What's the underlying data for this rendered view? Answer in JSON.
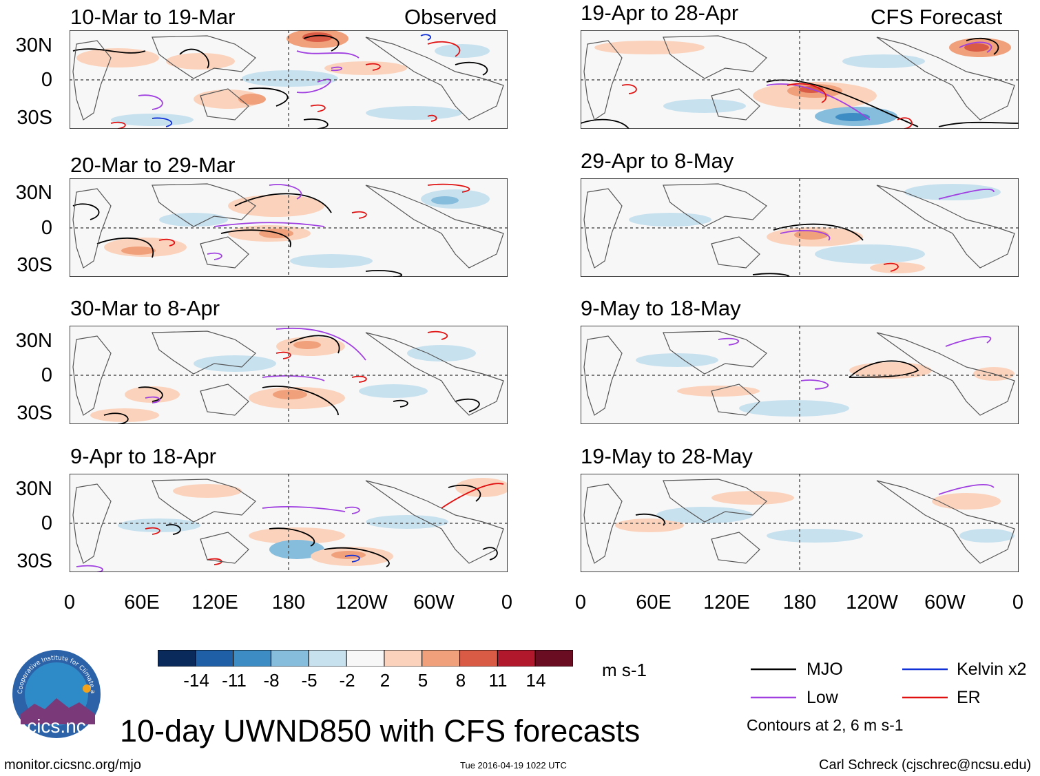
{
  "panels": [
    {
      "title": "10-Mar to 19-Mar",
      "tag": "Observed"
    },
    {
      "title": "20-Mar to 29-Mar",
      "tag": ""
    },
    {
      "title": "30-Mar to 8-Apr",
      "tag": ""
    },
    {
      "title": "9-Apr to 18-Apr",
      "tag": ""
    },
    {
      "title": "19-Apr to 28-Apr",
      "tag": "CFS Forecast"
    },
    {
      "title": "29-Apr to 8-May",
      "tag": ""
    },
    {
      "title": "9-May to 18-May",
      "tag": ""
    },
    {
      "title": "19-May to 28-May",
      "tag": ""
    }
  ],
  "lat_labels": [
    "30N",
    "0",
    "30S"
  ],
  "lon_labels": [
    "0",
    "60E",
    "120E",
    "180",
    "120W",
    "60W",
    "0"
  ],
  "colorbar": {
    "colors": [
      "#0b2a5c",
      "#1f5fa6",
      "#3d8cc4",
      "#86bcdc",
      "#c8e1ef",
      "#f7f7f7",
      "#fbd3bd",
      "#f0a07b",
      "#d95b45",
      "#b2182b",
      "#6b0d22"
    ],
    "labels": [
      "-14",
      "-11",
      "-8",
      "-5",
      "-2",
      "2",
      "5",
      "8",
      "11",
      "14"
    ],
    "units": "m s-1"
  },
  "legend": {
    "items": [
      {
        "label": "MJO",
        "color": "#000000"
      },
      {
        "label": "Kelvin x2",
        "color": "#1030d8"
      },
      {
        "label": "Low",
        "color": "#a040e0"
      },
      {
        "label": "ER",
        "color": "#e01010"
      }
    ],
    "note": "Contours at 2, 6 m s-1"
  },
  "logo_text": "cics.nc",
  "logo_ring_text": "Cooperative Institute for Climate and Satellites",
  "main_title": "10-day UWND850 with CFS forecasts",
  "footer": {
    "url": "monitor.cicsnc.org/mjo",
    "timestamp": "Tue 2016-04-19 1022 UTC",
    "credit": "Carl Schreck (cjschrec@ncsu.edu)"
  }
}
